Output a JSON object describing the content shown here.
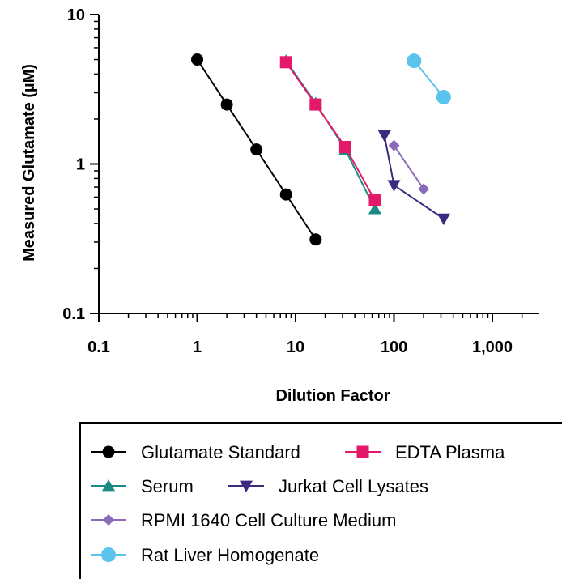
{
  "chart_data": {
    "type": "line",
    "title": "",
    "xlabel": "Dilution Factor",
    "ylabel": "Measured Glutamate (µM)",
    "xscale": "log",
    "yscale": "log",
    "xlim": [
      0.1,
      3000
    ],
    "ylim": [
      0.1,
      10
    ],
    "xticks": [
      {
        "value": 0.1,
        "label": "0.1"
      },
      {
        "value": 1,
        "label": "1"
      },
      {
        "value": 10,
        "label": "10"
      },
      {
        "value": 100,
        "label": "100"
      },
      {
        "value": 1000,
        "label": "1,000"
      }
    ],
    "yticks": [
      {
        "value": 0.1,
        "label": "0.1"
      },
      {
        "value": 1,
        "label": "1"
      },
      {
        "value": 10,
        "label": "10"
      }
    ],
    "grid": false,
    "legend_position": "bottom",
    "series": [
      {
        "name": "Glutamate Standard",
        "color": "#000000",
        "marker": "circle",
        "x": [
          1,
          2,
          4,
          8,
          16
        ],
        "y": [
          5.0,
          2.5,
          1.25,
          0.625,
          0.3125
        ]
      },
      {
        "name": "EDTA Plasma",
        "color": "#e5196a",
        "marker": "square",
        "x": [
          8,
          16,
          32,
          64
        ],
        "y": [
          4.8,
          2.5,
          1.3,
          0.57
        ]
      },
      {
        "name": "Serum",
        "color": "#1a8a85",
        "marker": "triangle-up",
        "x": [
          8,
          16,
          32,
          64
        ],
        "y": [
          4.9,
          2.55,
          1.25,
          0.5
        ]
      },
      {
        "name": "Jurkat Cell Lysates",
        "color": "#3b2a7e",
        "marker": "triangle-down",
        "x": [
          80,
          100,
          320
        ],
        "y": [
          1.55,
          0.72,
          0.43
        ]
      },
      {
        "name": "RPMI 1640 Cell Culture Medium",
        "color": "#8b6bb8",
        "marker": "diamond",
        "x": [
          100,
          200
        ],
        "y": [
          1.33,
          0.68
        ]
      },
      {
        "name": "Rat Liver Homogenate",
        "color": "#5bc4ec",
        "marker": "circle",
        "x": [
          160,
          320
        ],
        "y": [
          4.9,
          2.8
        ]
      }
    ]
  }
}
